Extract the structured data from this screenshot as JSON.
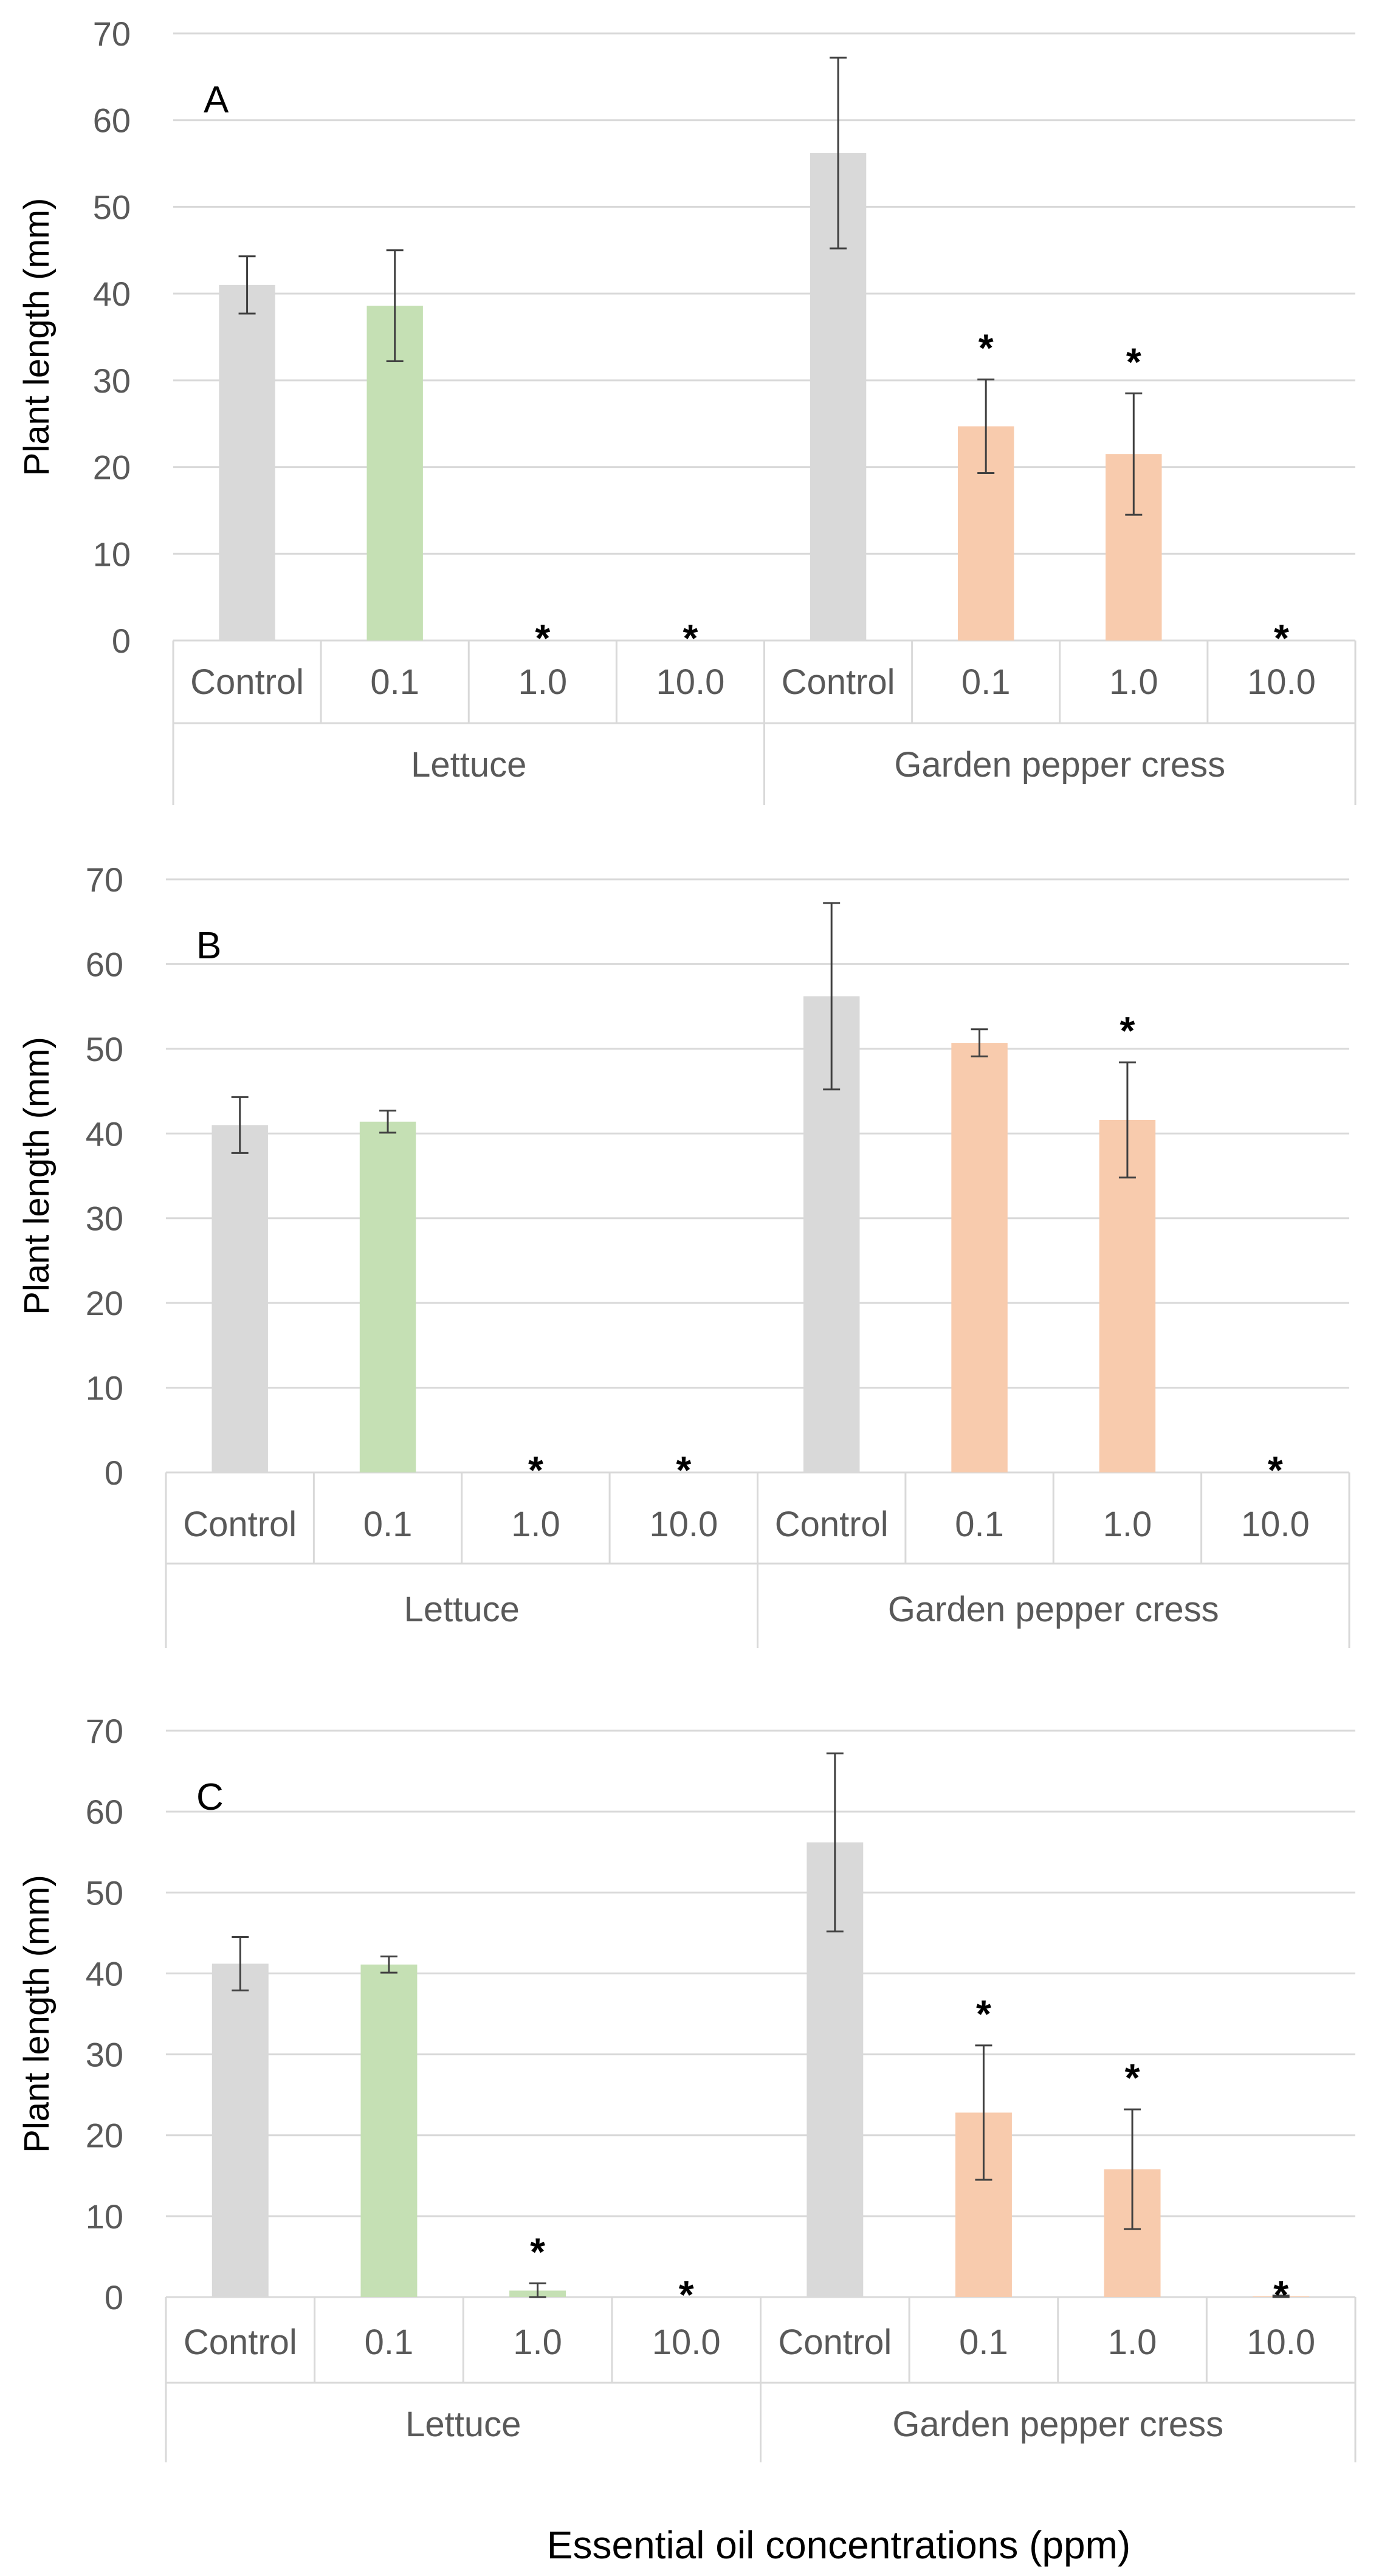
{
  "chart_data": [
    {
      "type": "bar",
      "panel": "A",
      "ylabel": "Plant length (mm)",
      "ylim": [
        0,
        70
      ],
      "yticks": [
        0,
        10,
        20,
        30,
        40,
        50,
        60,
        70
      ],
      "groups": [
        "Lettuce",
        "Garden pepper cress"
      ],
      "categories": [
        "Control",
        "0.1",
        "1.0",
        "10.0",
        "Control",
        "0.1",
        "1.0",
        "10.0"
      ],
      "values": [
        41,
        38.6,
        0,
        0,
        56.2,
        24.7,
        21.5,
        0
      ],
      "errors": [
        3.3,
        6.4,
        null,
        null,
        11,
        5.4,
        7,
        null
      ],
      "significant": [
        false,
        false,
        true,
        true,
        false,
        true,
        true,
        true
      ],
      "colors": [
        "#d9d9d9",
        "#c5e0b4",
        "#d9d9d9",
        "#d9d9d9",
        "#d9d9d9",
        "#f8cbad",
        "#f8cbad",
        "#f8cbad"
      ],
      "marker": "*"
    },
    {
      "type": "bar",
      "panel": "B",
      "ylabel": "Plant length (mm)",
      "ylim": [
        0,
        70
      ],
      "yticks": [
        0,
        10,
        20,
        30,
        40,
        50,
        60,
        70
      ],
      "groups": [
        "Lettuce",
        "Garden pepper cress"
      ],
      "categories": [
        "Control",
        "0.1",
        "1.0",
        "10.0",
        "Control",
        "0.1",
        "1.0",
        "10.0"
      ],
      "values": [
        41,
        41.4,
        0,
        0,
        56.2,
        50.7,
        41.6,
        0
      ],
      "errors": [
        3.3,
        1.3,
        null,
        null,
        11,
        1.6,
        6.8,
        null
      ],
      "significant": [
        false,
        false,
        true,
        true,
        false,
        false,
        true,
        true
      ],
      "colors": [
        "#d9d9d9",
        "#c5e0b4",
        "#d9d9d9",
        "#d9d9d9",
        "#d9d9d9",
        "#f8cbad",
        "#f8cbad",
        "#f8cbad"
      ],
      "marker": "*"
    },
    {
      "type": "bar",
      "panel": "C",
      "ylabel": "Plant length (mm)",
      "ylim": [
        0,
        70
      ],
      "yticks": [
        0,
        10,
        20,
        30,
        40,
        50,
        60,
        70
      ],
      "groups": [
        "Lettuce",
        "Garden pepper cress"
      ],
      "categories": [
        "Control",
        "0.1",
        "1.0",
        "10.0",
        "Control",
        "0.1",
        "1.0",
        "10.0"
      ],
      "values": [
        41.2,
        41.1,
        0.8,
        0,
        56.2,
        22.8,
        15.8,
        0.1
      ],
      "errors": [
        3.3,
        1.0,
        0.9,
        null,
        11,
        8.3,
        7.4,
        0.1
      ],
      "significant": [
        false,
        false,
        true,
        true,
        false,
        true,
        true,
        true
      ],
      "colors": [
        "#d9d9d9",
        "#c5e0b4",
        "#c5e0b4",
        "#d9d9d9",
        "#d9d9d9",
        "#f8cbad",
        "#f8cbad",
        "#f8cbad"
      ],
      "marker": "*"
    }
  ],
  "xlabel": "Essential oil concentrations (ppm)"
}
